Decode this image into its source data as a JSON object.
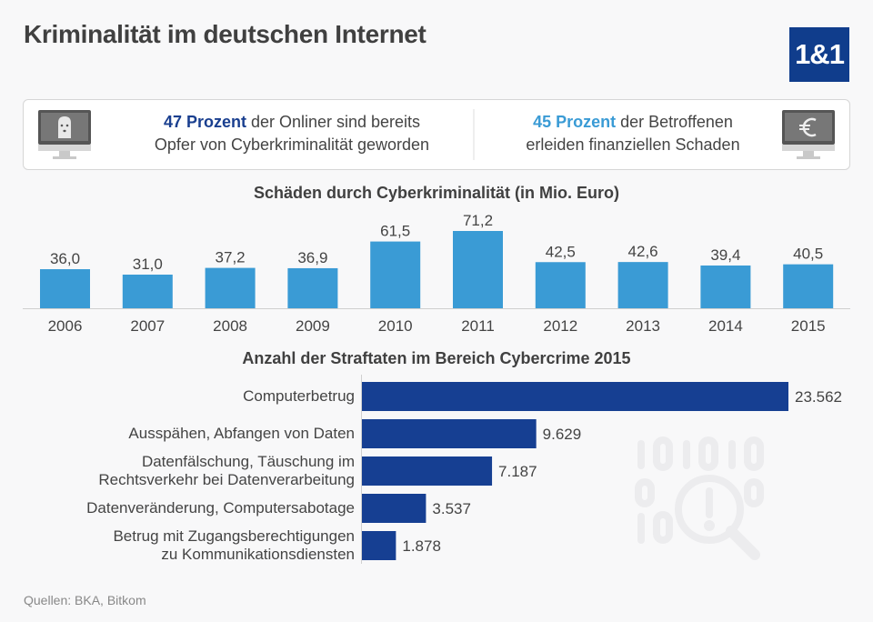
{
  "header": {
    "title": "Kriminalität im deutschen Internet",
    "logo_text": "1&1"
  },
  "infobox": {
    "left": {
      "highlight": "47 Prozent",
      "text_line1_rest": " der Onliner sind bereits",
      "text_line2": "Opfer von Cyberkriminalität geworden",
      "icon": "monitor-balaclava-icon"
    },
    "right": {
      "highlight": "45 Prozent",
      "text_line1_rest": " der Betroffenen",
      "text_line2": "erleiden finanziellen Schaden",
      "icon": "monitor-euro-icon"
    }
  },
  "colors": {
    "light_blue": "#3a9bd5",
    "dark_blue": "#163f92",
    "logo_blue": "#103d8c"
  },
  "chart_data": [
    {
      "type": "bar",
      "title": "Schäden durch Cyberkriminalität (in Mio. Euro)",
      "categories": [
        "2006",
        "2007",
        "2008",
        "2009",
        "2010",
        "2011",
        "2012",
        "2013",
        "2014",
        "2015"
      ],
      "values": [
        36.0,
        31.0,
        37.2,
        36.9,
        61.5,
        71.2,
        42.5,
        42.6,
        39.4,
        40.5
      ],
      "value_labels": [
        "36,0",
        "31,0",
        "37,2",
        "36,9",
        "61,5",
        "71,2",
        "42,5",
        "42,6",
        "39,4",
        "40,5"
      ],
      "xlabel": "",
      "ylabel": "",
      "ylim": [
        0,
        80
      ],
      "grid": false
    },
    {
      "type": "bar",
      "orientation": "horizontal",
      "title": "Anzahl der Straftaten im Bereich Cybercrime 2015",
      "categories": [
        [
          "Computerbetrug"
        ],
        [
          "Ausspähen, Abfangen von Daten"
        ],
        [
          "Datenfälschung, Täuschung im",
          "Rechtsverkehr bei Datenverarbeitung"
        ],
        [
          "Datenveränderung, Computersabotage"
        ],
        [
          "Betrug mit Zugangsberechtigungen",
          "zu Kommunikationsdiensten"
        ]
      ],
      "values": [
        23562,
        9629,
        7187,
        3537,
        1878
      ],
      "value_labels": [
        "23.562",
        "9.629",
        "7.187",
        "3.537",
        "1.878"
      ],
      "xlim": [
        0,
        23562
      ],
      "grid": false
    }
  ],
  "decor": {
    "background_icon": "binary-magnifier-alert-icon",
    "binary_rows": [
      "101010",
      "0    0",
      "10   0"
    ]
  },
  "footer": {
    "source": "Quellen: BKA, Bitkom"
  }
}
